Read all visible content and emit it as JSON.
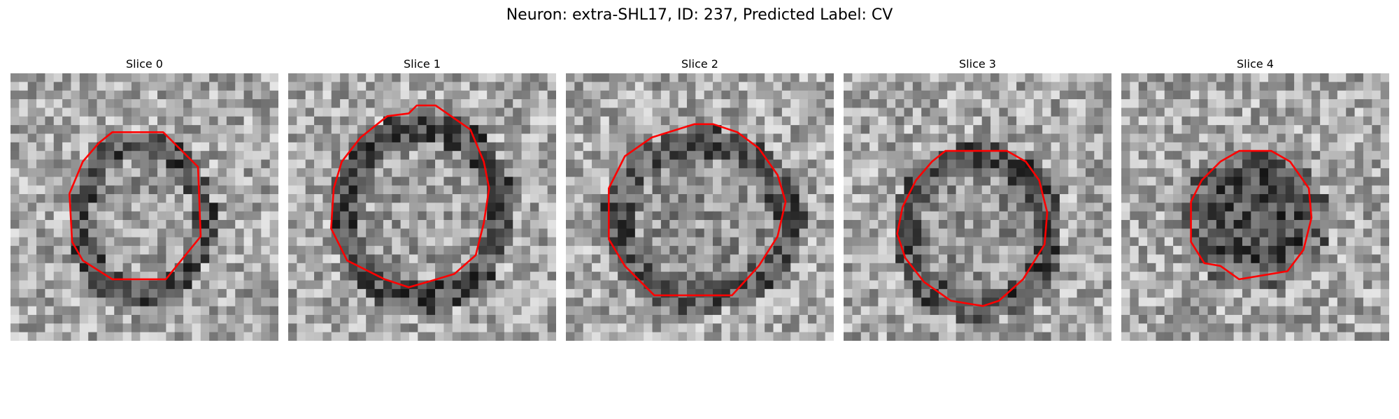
{
  "title": "Neuron: extra-SHL17, ID: 237, Predicted Label: CV",
  "outline_color": "#ff0000",
  "panels": [
    {
      "label": "Slice 0",
      "seed": 11,
      "center": [
        0.49,
        0.55
      ],
      "radius": [
        0.24,
        0.29
      ],
      "interior_tone": 0.62,
      "ring_tone": 0.32,
      "roi": [
        [
          0.38,
          0.22
        ],
        [
          0.57,
          0.22
        ],
        [
          0.7,
          0.35
        ],
        [
          0.71,
          0.61
        ],
        [
          0.58,
          0.77
        ],
        [
          0.38,
          0.77
        ],
        [
          0.27,
          0.7
        ],
        [
          0.23,
          0.63
        ],
        [
          0.22,
          0.45
        ],
        [
          0.27,
          0.33
        ],
        [
          0.33,
          0.26
        ]
      ]
    },
    {
      "label": "Slice 1",
      "seed": 23,
      "center": [
        0.5,
        0.52
      ],
      "radius": [
        0.3,
        0.33
      ],
      "interior_tone": 0.62,
      "ring_tone": 0.32,
      "roi": [
        [
          0.37,
          0.16
        ],
        [
          0.45,
          0.15
        ],
        [
          0.48,
          0.12
        ],
        [
          0.55,
          0.12
        ],
        [
          0.68,
          0.21
        ],
        [
          0.73,
          0.33
        ],
        [
          0.75,
          0.43
        ],
        [
          0.73,
          0.56
        ],
        [
          0.7,
          0.68
        ],
        [
          0.62,
          0.75
        ],
        [
          0.52,
          0.78
        ],
        [
          0.45,
          0.8
        ],
        [
          0.36,
          0.77
        ],
        [
          0.22,
          0.7
        ],
        [
          0.16,
          0.58
        ],
        [
          0.17,
          0.43
        ],
        [
          0.2,
          0.33
        ],
        [
          0.27,
          0.24
        ]
      ]
    },
    {
      "label": "Slice 2",
      "seed": 37,
      "center": [
        0.51,
        0.55
      ],
      "radius": [
        0.33,
        0.3
      ],
      "interior_tone": 0.58,
      "ring_tone": 0.35,
      "roi": [
        [
          0.48,
          0.19
        ],
        [
          0.55,
          0.19
        ],
        [
          0.64,
          0.22
        ],
        [
          0.72,
          0.28
        ],
        [
          0.79,
          0.38
        ],
        [
          0.82,
          0.48
        ],
        [
          0.79,
          0.61
        ],
        [
          0.72,
          0.72
        ],
        [
          0.62,
          0.83
        ],
        [
          0.33,
          0.83
        ],
        [
          0.22,
          0.72
        ],
        [
          0.16,
          0.62
        ],
        [
          0.16,
          0.43
        ],
        [
          0.22,
          0.31
        ],
        [
          0.32,
          0.24
        ]
      ]
    },
    {
      "label": "Slice 3",
      "seed": 51,
      "center": [
        0.5,
        0.6
      ],
      "radius": [
        0.28,
        0.29
      ],
      "interior_tone": 0.58,
      "ring_tone": 0.32,
      "roi": [
        [
          0.38,
          0.29
        ],
        [
          0.61,
          0.29
        ],
        [
          0.68,
          0.33
        ],
        [
          0.73,
          0.4
        ],
        [
          0.76,
          0.52
        ],
        [
          0.75,
          0.64
        ],
        [
          0.67,
          0.77
        ],
        [
          0.58,
          0.85
        ],
        [
          0.52,
          0.87
        ],
        [
          0.4,
          0.85
        ],
        [
          0.3,
          0.78
        ],
        [
          0.23,
          0.69
        ],
        [
          0.2,
          0.6
        ],
        [
          0.22,
          0.5
        ],
        [
          0.27,
          0.4
        ],
        [
          0.33,
          0.33
        ]
      ]
    },
    {
      "label": "Slice 4",
      "seed": 67,
      "center": [
        0.5,
        0.55
      ],
      "radius": [
        0.24,
        0.23
      ],
      "interior_tone": 0.3,
      "ring_tone": 0.42,
      "roi": [
        [
          0.44,
          0.29
        ],
        [
          0.56,
          0.29
        ],
        [
          0.63,
          0.33
        ],
        [
          0.7,
          0.43
        ],
        [
          0.71,
          0.54
        ],
        [
          0.68,
          0.66
        ],
        [
          0.62,
          0.74
        ],
        [
          0.44,
          0.77
        ],
        [
          0.37,
          0.72
        ],
        [
          0.31,
          0.71
        ],
        [
          0.26,
          0.63
        ],
        [
          0.26,
          0.48
        ],
        [
          0.3,
          0.4
        ],
        [
          0.37,
          0.33
        ]
      ]
    }
  ]
}
